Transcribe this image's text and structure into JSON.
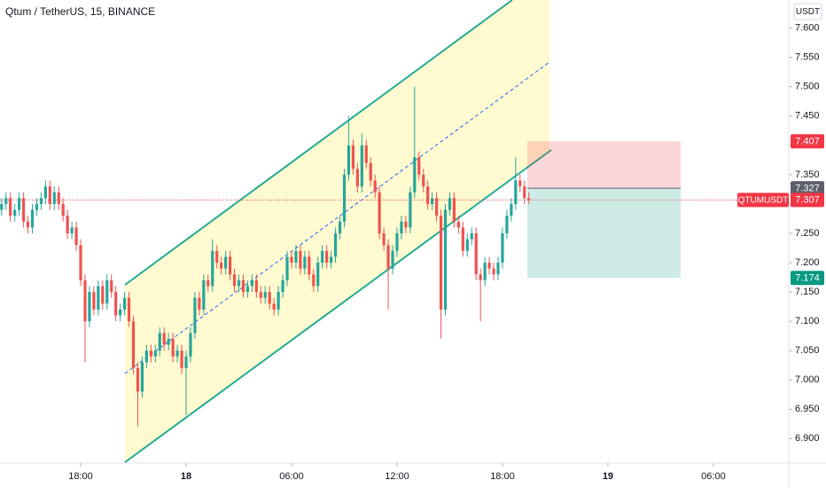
{
  "chart_data": {
    "type": "candlestick",
    "title": "Qtum / TetherUS, 15, BINANCE",
    "currency": "USDT",
    "up_color": "#26a69a",
    "down_color": "#ef5350",
    "xlim": [
      13.41,
      58.29
    ],
    "ylim": [
      6.858,
      7.648
    ],
    "xticks": [
      {
        "value": 18,
        "label": "18:00"
      },
      {
        "value": 24,
        "label": "18"
      },
      {
        "value": 30,
        "label": "06:00"
      },
      {
        "value": 36,
        "label": "12:00"
      },
      {
        "value": 42,
        "label": "18:00"
      },
      {
        "value": 48,
        "label": "19"
      },
      {
        "value": 54,
        "label": "06:00"
      }
    ],
    "yticks": [
      {
        "value": 6.9,
        "label": "6.900"
      },
      {
        "value": 6.95,
        "label": "6.950"
      },
      {
        "value": 7.0,
        "label": "7.000"
      },
      {
        "value": 7.05,
        "label": "7.050"
      },
      {
        "value": 7.1,
        "label": "7.100"
      },
      {
        "value": 7.15,
        "label": "7.150"
      },
      {
        "value": 7.2,
        "label": "7.200"
      },
      {
        "value": 7.25,
        "label": "7.250"
      },
      {
        "value": 7.3,
        "label": "7.300"
      },
      {
        "value": 7.35,
        "label": "7.350"
      },
      {
        "value": 7.4,
        "label": "7.400"
      },
      {
        "value": 7.45,
        "label": "7.450"
      },
      {
        "value": 7.5,
        "label": "7.500"
      },
      {
        "value": 7.55,
        "label": "7.550"
      },
      {
        "value": 7.6,
        "label": "7.600"
      }
    ],
    "x": [
      13.5,
      13.75,
      14,
      14.25,
      14.5,
      14.75,
      15,
      15.25,
      15.5,
      15.75,
      16,
      16.25,
      16.5,
      16.75,
      17,
      17.25,
      17.5,
      17.75,
      18,
      18.25,
      18.5,
      18.75,
      19,
      19.25,
      19.5,
      19.75,
      20,
      20.25,
      20.5,
      20.75,
      21,
      21.25,
      21.5,
      21.75,
      22,
      22.25,
      22.5,
      22.75,
      23,
      23.25,
      23.5,
      23.75,
      24,
      24.25,
      24.5,
      24.75,
      25,
      25.25,
      25.5,
      25.75,
      26,
      26.25,
      26.5,
      26.75,
      27,
      27.25,
      27.5,
      27.75,
      28,
      28.25,
      28.5,
      28.75,
      29,
      29.25,
      29.5,
      29.75,
      30,
      30.25,
      30.5,
      30.75,
      31,
      31.25,
      31.5,
      31.75,
      32,
      32.25,
      32.5,
      32.75,
      33,
      33.25,
      33.5,
      33.75,
      34,
      34.25,
      34.5,
      34.75,
      35,
      35.25,
      35.5,
      35.75,
      36,
      36.25,
      36.5,
      36.75,
      37,
      37.25,
      37.5,
      37.75,
      38,
      38.25,
      38.5,
      38.75,
      39,
      39.25,
      39.5,
      39.75,
      40,
      40.25,
      40.5,
      40.75,
      41,
      41.25,
      41.5,
      41.75,
      42,
      42.25,
      42.5,
      42.75,
      43,
      43.25,
      43.5
    ],
    "open": [
      7.29,
      7.3,
      7.31,
      7.28,
      7.29,
      7.31,
      7.27,
      7.26,
      7.29,
      7.3,
      7.31,
      7.33,
      7.3,
      7.32,
      7.3,
      7.28,
      7.25,
      7.26,
      7.23,
      7.17,
      7.1,
      7.15,
      7.12,
      7.16,
      7.13,
      7.17,
      7.15,
      7.11,
      7.12,
      7.14,
      7.1,
      7.02,
      6.98,
      7.03,
      7.05,
      7.04,
      7.05,
      7.08,
      7.06,
      7.07,
      7.04,
      7.05,
      7.02,
      7.04,
      7.08,
      7.14,
      7.12,
      7.17,
      7.16,
      7.22,
      7.2,
      7.19,
      7.21,
      7.18,
      7.16,
      7.17,
      7.15,
      7.16,
      7.17,
      7.15,
      7.14,
      7.15,
      7.13,
      7.12,
      7.15,
      7.17,
      7.21,
      7.2,
      7.22,
      7.19,
      7.21,
      7.18,
      7.16,
      7.2,
      7.22,
      7.2,
      7.21,
      7.25,
      7.27,
      7.35,
      7.4,
      7.36,
      7.33,
      7.4,
      7.37,
      7.34,
      7.32,
      7.25,
      7.23,
      7.19,
      7.22,
      7.25,
      7.27,
      7.26,
      7.32,
      7.38,
      7.35,
      7.33,
      7.3,
      7.31,
      7.28,
      7.12,
      7.29,
      7.31,
      7.27,
      7.26,
      7.22,
      7.24,
      7.25,
      7.18,
      7.17,
      7.2,
      7.19,
      7.18,
      7.2,
      7.25,
      7.28,
      7.3,
      7.34,
      7.33,
      7.31
    ],
    "high": [
      7.31,
      7.32,
      7.32,
      7.3,
      7.32,
      7.32,
      7.28,
      7.3,
      7.31,
      7.32,
      7.34,
      7.34,
      7.33,
      7.33,
      7.31,
      7.29,
      7.27,
      7.27,
      7.24,
      7.18,
      7.16,
      7.16,
      7.17,
      7.17,
      7.18,
      7.18,
      7.16,
      7.13,
      7.15,
      7.15,
      7.11,
      7.03,
      7.04,
      7.06,
      7.06,
      7.06,
      7.09,
      7.09,
      7.08,
      7.08,
      7.06,
      7.06,
      7.05,
      7.09,
      7.15,
      7.15,
      7.18,
      7.18,
      7.24,
      7.23,
      7.21,
      7.22,
      7.22,
      7.19,
      7.18,
      7.18,
      7.17,
      7.18,
      7.18,
      7.16,
      7.16,
      7.16,
      7.14,
      7.16,
      7.18,
      7.22,
      7.22,
      7.23,
      7.23,
      7.22,
      7.22,
      7.19,
      7.21,
      7.23,
      7.23,
      7.22,
      7.26,
      7.28,
      7.36,
      7.45,
      7.41,
      7.37,
      7.42,
      7.41,
      7.38,
      7.35,
      7.33,
      7.26,
      7.24,
      7.23,
      7.26,
      7.28,
      7.28,
      7.33,
      7.5,
      7.39,
      7.36,
      7.34,
      7.32,
      7.32,
      7.29,
      7.3,
      7.32,
      7.32,
      7.28,
      7.27,
      7.25,
      7.26,
      7.26,
      7.19,
      7.21,
      7.21,
      7.2,
      7.21,
      7.26,
      7.29,
      7.31,
      7.38,
      7.35,
      7.34,
      7.32
    ],
    "low": [
      7.28,
      7.29,
      7.27,
      7.27,
      7.28,
      7.26,
      7.25,
      7.25,
      7.28,
      7.29,
      7.3,
      7.29,
      7.29,
      7.29,
      7.27,
      7.24,
      7.24,
      7.22,
      7.16,
      7.03,
      7.09,
      7.11,
      7.11,
      7.12,
      7.12,
      7.14,
      7.1,
      7.1,
      7.11,
      7.09,
      7.01,
      6.92,
      6.97,
      7.02,
      7.03,
      7.03,
      7.04,
      7.05,
      7.05,
      7.03,
      7.03,
      7.01,
      6.94,
      7.03,
      7.07,
      7.11,
      7.11,
      7.15,
      7.15,
      7.19,
      7.18,
      7.18,
      7.17,
      7.15,
      7.15,
      7.14,
      7.14,
      7.15,
      7.14,
      7.13,
      7.13,
      7.12,
      7.11,
      7.11,
      7.14,
      7.16,
      7.19,
      7.19,
      7.18,
      7.18,
      7.17,
      7.15,
      7.15,
      7.19,
      7.19,
      7.19,
      7.2,
      7.24,
      7.26,
      7.34,
      7.35,
      7.32,
      7.32,
      7.36,
      7.33,
      7.31,
      7.24,
      7.22,
      7.12,
      7.18,
      7.21,
      7.24,
      7.25,
      7.25,
      7.31,
      7.34,
      7.32,
      7.29,
      7.29,
      7.27,
      7.07,
      7.11,
      7.28,
      7.26,
      7.25,
      7.21,
      7.21,
      7.23,
      7.17,
      7.1,
      7.16,
      7.18,
      7.17,
      7.17,
      7.19,
      7.24,
      7.27,
      7.29,
      7.32,
      7.3,
      7.3
    ],
    "close": [
      7.3,
      7.31,
      7.28,
      7.29,
      7.31,
      7.27,
      7.26,
      7.29,
      7.3,
      7.31,
      7.33,
      7.3,
      7.32,
      7.3,
      7.28,
      7.25,
      7.26,
      7.23,
      7.17,
      7.1,
      7.15,
      7.12,
      7.16,
      7.13,
      7.17,
      7.15,
      7.11,
      7.12,
      7.14,
      7.1,
      7.02,
      6.98,
      7.03,
      7.05,
      7.04,
      7.05,
      7.08,
      7.06,
      7.07,
      7.04,
      7.05,
      7.02,
      7.04,
      7.08,
      7.14,
      7.12,
      7.17,
      7.16,
      7.22,
      7.2,
      7.19,
      7.21,
      7.18,
      7.16,
      7.17,
      7.15,
      7.16,
      7.17,
      7.15,
      7.14,
      7.15,
      7.13,
      7.12,
      7.15,
      7.17,
      7.21,
      7.2,
      7.22,
      7.19,
      7.21,
      7.18,
      7.16,
      7.2,
      7.22,
      7.2,
      7.21,
      7.25,
      7.27,
      7.35,
      7.4,
      7.36,
      7.33,
      7.4,
      7.37,
      7.34,
      7.32,
      7.25,
      7.23,
      7.19,
      7.22,
      7.25,
      7.27,
      7.26,
      7.32,
      7.38,
      7.35,
      7.33,
      7.3,
      7.31,
      7.28,
      7.12,
      7.29,
      7.31,
      7.27,
      7.26,
      7.22,
      7.24,
      7.25,
      7.18,
      7.17,
      7.2,
      7.19,
      7.18,
      7.2,
      7.25,
      7.28,
      7.3,
      7.34,
      7.33,
      7.31,
      7.307
    ],
    "position": {
      "stop": 7.407,
      "entry": 7.327,
      "target": 7.174,
      "stop_color": "#f23645",
      "entry_color": "#5d606b",
      "target_color": "#089981"
    },
    "last_price": {
      "symbol": "QTUMUSDT",
      "value": 7.307,
      "color": "#f23645"
    }
  }
}
